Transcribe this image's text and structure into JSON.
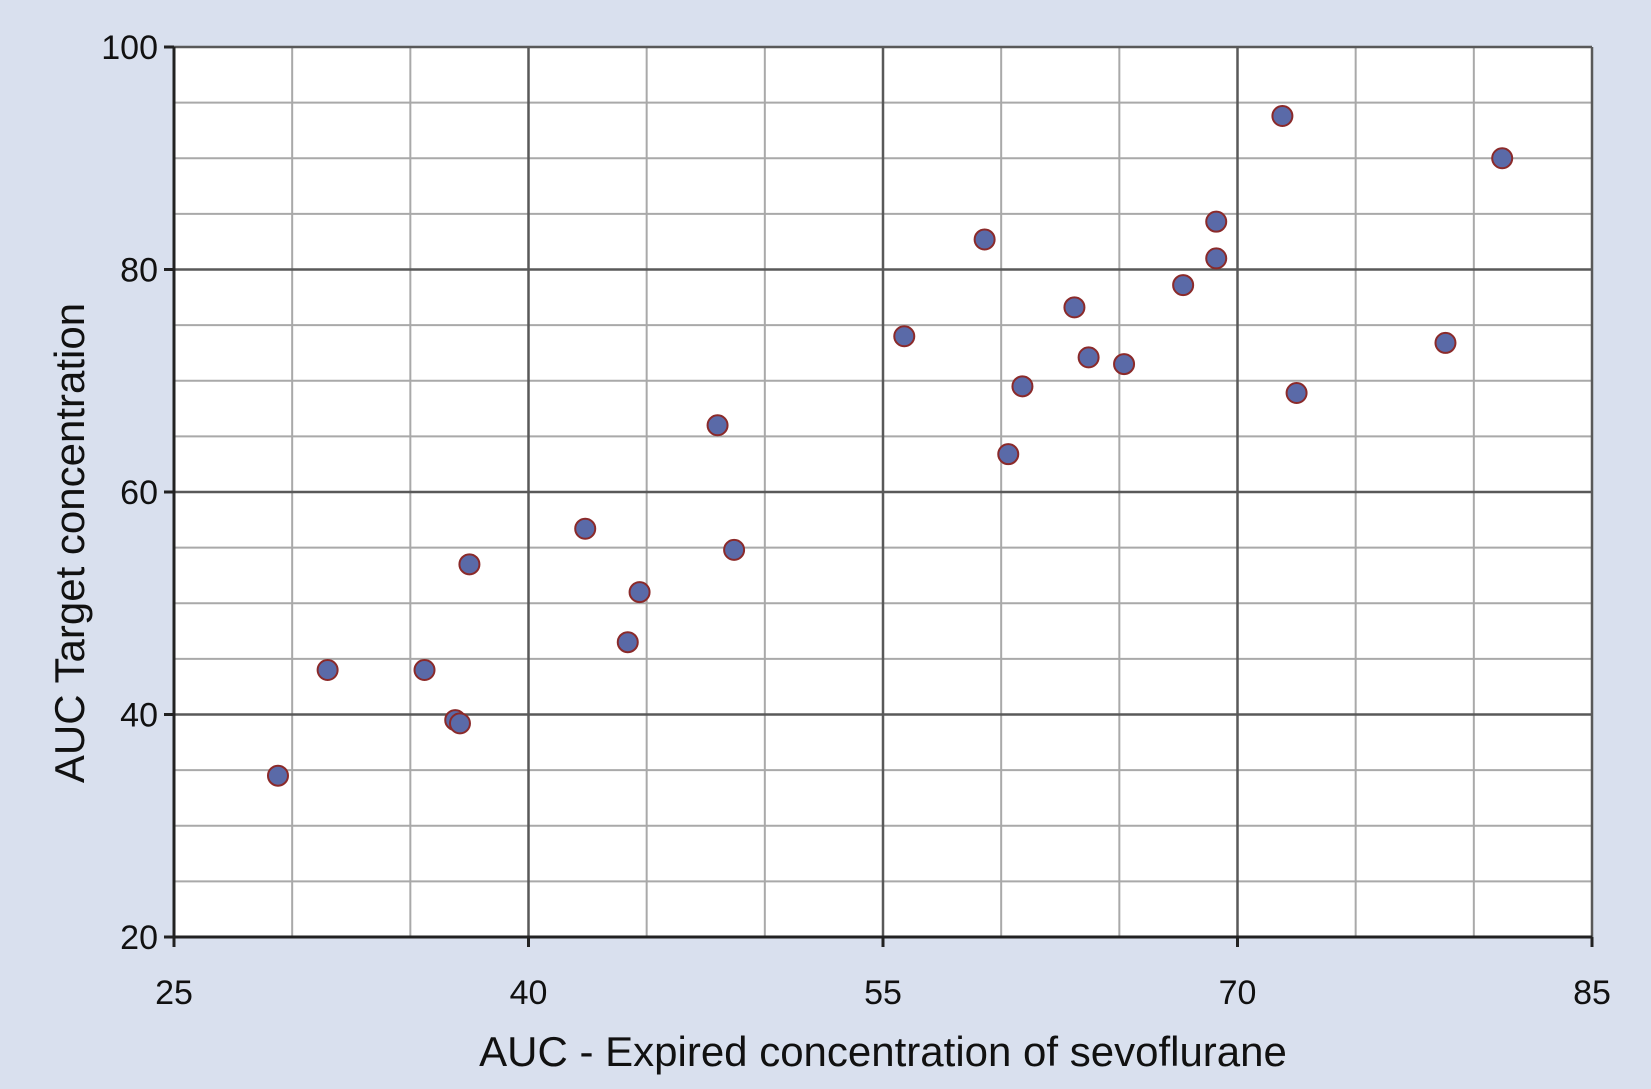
{
  "chart_data": {
    "type": "scatter",
    "title": "",
    "xlabel": "AUC - Expired concentration of sevoflurane",
    "ylabel": "AUC Target concentration",
    "xlim": [
      25,
      85
    ],
    "ylim": [
      20,
      100
    ],
    "x_ticks": [
      25,
      40,
      55,
      70,
      85
    ],
    "y_ticks": [
      20,
      40,
      60,
      80,
      100
    ],
    "grid": true,
    "marker_color": "#5a6aa8",
    "marker_edge_color": "#8b2a2a",
    "points": [
      {
        "x": 29.4,
        "y": 34.5
      },
      {
        "x": 31.5,
        "y": 44.0
      },
      {
        "x": 35.6,
        "y": 44.0
      },
      {
        "x": 36.9,
        "y": 39.5
      },
      {
        "x": 37.1,
        "y": 39.2
      },
      {
        "x": 37.5,
        "y": 53.5
      },
      {
        "x": 42.4,
        "y": 56.7
      },
      {
        "x": 44.2,
        "y": 46.5
      },
      {
        "x": 44.7,
        "y": 51.0
      },
      {
        "x": 48.0,
        "y": 66.0
      },
      {
        "x": 48.7,
        "y": 54.8
      },
      {
        "x": 55.9,
        "y": 74.0
      },
      {
        "x": 59.3,
        "y": 82.7
      },
      {
        "x": 60.3,
        "y": 63.4
      },
      {
        "x": 60.9,
        "y": 69.5
      },
      {
        "x": 63.1,
        "y": 76.6
      },
      {
        "x": 63.7,
        "y": 72.1
      },
      {
        "x": 65.2,
        "y": 71.5
      },
      {
        "x": 67.7,
        "y": 78.6
      },
      {
        "x": 69.1,
        "y": 84.3
      },
      {
        "x": 69.1,
        "y": 81.0
      },
      {
        "x": 71.9,
        "y": 93.8
      },
      {
        "x": 72.5,
        "y": 68.9
      },
      {
        "x": 78.8,
        "y": 73.4
      },
      {
        "x": 81.2,
        "y": 90.0
      }
    ]
  }
}
